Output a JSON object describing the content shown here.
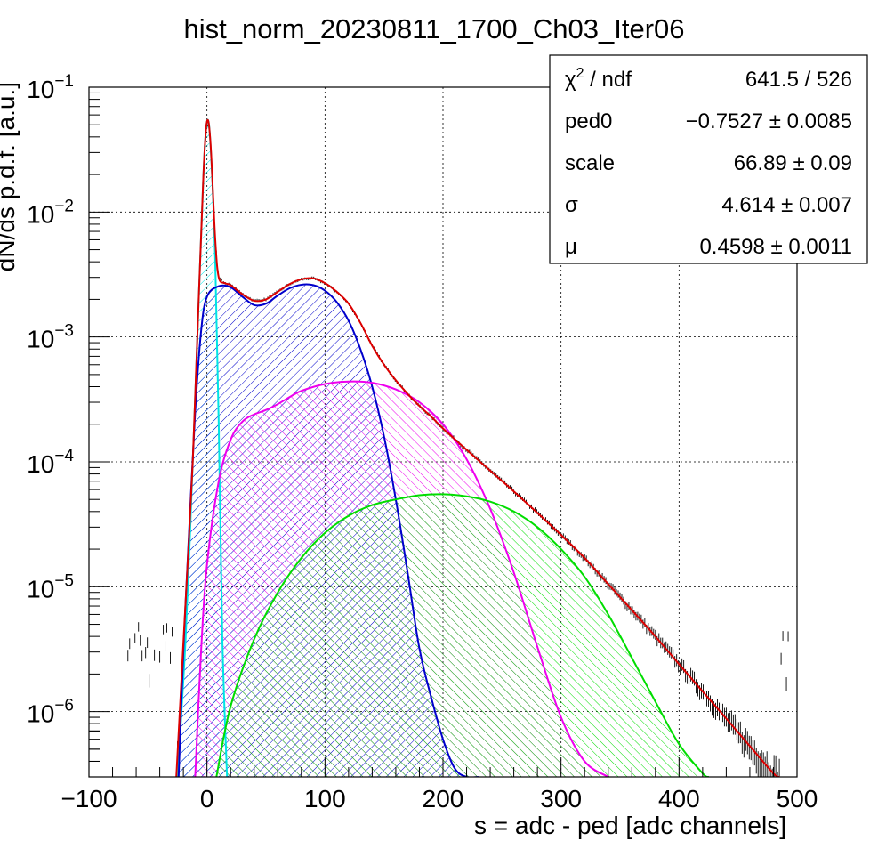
{
  "chart_data": {
    "type": "line",
    "title": "hist_norm_20230811_1700_Ch03_Iter06",
    "xlabel": "s = adc - ped [adc channels]",
    "ylabel": "dN/ds p.d.f. [a.u.]",
    "xlim": [
      -100,
      500
    ],
    "ylim": [
      3e-07,
      0.1
    ],
    "yscale": "log",
    "grid": true,
    "x_ticks": [
      -100,
      0,
      100,
      200,
      300,
      400,
      500
    ],
    "x_tick_labels": [
      "−100",
      "0",
      "100",
      "200",
      "300",
      "400",
      "500"
    ],
    "y_ticks": [
      {
        "value": 0.1,
        "mantissa": "10",
        "exponent": "−1"
      },
      {
        "value": 0.01,
        "mantissa": "10",
        "exponent": "−2"
      },
      {
        "value": 0.001,
        "mantissa": "10",
        "exponent": "−3"
      },
      {
        "value": 0.0001,
        "mantissa": "10",
        "exponent": "−4"
      },
      {
        "value": 1e-05,
        "mantissa": "10",
        "exponent": "−5"
      },
      {
        "value": 1e-06,
        "mantissa": "10",
        "exponent": "−6"
      }
    ],
    "stats": [
      {
        "label_main": "χ",
        "label_sup": "2",
        "label_rest": " / ndf",
        "value": "641.5 / 526"
      },
      {
        "label_main": "ped0",
        "label_sup": "",
        "label_rest": "",
        "value": "−0.7527 ± 0.0085"
      },
      {
        "label_main": "scale",
        "label_sup": "",
        "label_rest": "",
        "value": "66.89 ± 0.09"
      },
      {
        "label_main": "σ",
        "label_sup": "",
        "label_rest": "",
        "value": "4.614 ± 0.007"
      },
      {
        "label_main": "μ",
        "label_sup": "",
        "label_rest": "",
        "value": "0.4598 ± 0.0011"
      }
    ],
    "series": [
      {
        "color": "#00e5e5",
        "hatch": true,
        "points": [
          [
            -25,
            3e-07
          ],
          [
            -18,
            4e-06
          ],
          [
            -12,
            0.0001
          ],
          [
            -7,
            0.002
          ],
          [
            -3,
            0.02
          ],
          [
            0,
            0.053
          ],
          [
            3,
            0.035
          ],
          [
            7,
            0.004
          ],
          [
            10,
            0.0002
          ],
          [
            13,
            4e-06
          ],
          [
            17,
            3e-07
          ]
        ]
      },
      {
        "color": "#0000cc",
        "hatch": true,
        "points": [
          [
            -24,
            3e-07
          ],
          [
            -20,
            3e-06
          ],
          [
            -15,
            3e-05
          ],
          [
            -10,
            0.00025
          ],
          [
            -5,
            0.0011
          ],
          [
            0,
            0.0021
          ],
          [
            10,
            0.00255
          ],
          [
            20,
            0.0025
          ],
          [
            30,
            0.0021
          ],
          [
            40,
            0.0018
          ],
          [
            50,
            0.00185
          ],
          [
            60,
            0.00215
          ],
          [
            70,
            0.00245
          ],
          [
            80,
            0.00262
          ],
          [
            90,
            0.0026
          ],
          [
            100,
            0.00235
          ],
          [
            110,
            0.0019
          ],
          [
            120,
            0.00135
          ],
          [
            130,
            0.0008
          ],
          [
            140,
            0.0004
          ],
          [
            150,
            0.00016
          ],
          [
            160,
            5e-05
          ],
          [
            170,
            1.3e-05
          ],
          [
            180,
            3.2e-06
          ],
          [
            190,
            1.3e-06
          ],
          [
            200,
            6e-07
          ],
          [
            210,
            3.5e-07
          ],
          [
            220,
            3e-07
          ],
          [
            230,
            3e-07
          ]
        ]
      },
      {
        "color": "#ee00ee",
        "hatch": true,
        "points": [
          [
            -10,
            3e-07
          ],
          [
            -5,
            3e-06
          ],
          [
            0,
            1.5e-05
          ],
          [
            10,
            7e-05
          ],
          [
            20,
            0.00015
          ],
          [
            30,
            0.00021
          ],
          [
            40,
            0.00024
          ],
          [
            50,
            0.00026
          ],
          [
            60,
            0.00029
          ],
          [
            70,
            0.00033
          ],
          [
            80,
            0.00037
          ],
          [
            100,
            0.00042
          ],
          [
            120,
            0.00044
          ],
          [
            140,
            0.00043
          ],
          [
            160,
            0.00038
          ],
          [
            180,
            0.0003
          ],
          [
            200,
            0.0002
          ],
          [
            220,
            0.000105
          ],
          [
            240,
            4.2e-05
          ],
          [
            260,
            1.3e-05
          ],
          [
            280,
            3.3e-06
          ],
          [
            300,
            9e-07
          ],
          [
            320,
            4e-07
          ],
          [
            340,
            3e-07
          ]
        ]
      },
      {
        "color": "#00dd00",
        "hatch": true,
        "points": [
          [
            8,
            3e-07
          ],
          [
            20,
            1.1e-06
          ],
          [
            40,
            3.8e-06
          ],
          [
            60,
            9e-06
          ],
          [
            80,
            1.7e-05
          ],
          [
            100,
            2.7e-05
          ],
          [
            120,
            3.7e-05
          ],
          [
            140,
            4.5e-05
          ],
          [
            160,
            5e-05
          ],
          [
            180,
            5.4e-05
          ],
          [
            200,
            5.5e-05
          ],
          [
            220,
            5.3e-05
          ],
          [
            240,
            4.8e-05
          ],
          [
            260,
            4e-05
          ],
          [
            280,
            3e-05
          ],
          [
            300,
            2e-05
          ],
          [
            320,
            1.2e-05
          ],
          [
            340,
            6e-06
          ],
          [
            360,
            2.7e-06
          ],
          [
            380,
            1.2e-06
          ],
          [
            400,
            5.5e-07
          ],
          [
            420,
            3.2e-07
          ],
          [
            425,
            3e-07
          ]
        ]
      },
      {
        "color": "#dd0000",
        "hatch": false,
        "points": [
          [
            -26,
            3e-07
          ],
          [
            -20,
            3.5e-06
          ],
          [
            -12,
            0.0001
          ],
          [
            -7,
            0.002
          ],
          [
            -3,
            0.02
          ],
          [
            0,
            0.053
          ],
          [
            3,
            0.036
          ],
          [
            7,
            0.006
          ],
          [
            10,
            0.003
          ],
          [
            15,
            0.0027
          ],
          [
            20,
            0.0026
          ],
          [
            30,
            0.0022
          ],
          [
            40,
            0.00195
          ],
          [
            50,
            0.002
          ],
          [
            60,
            0.0023
          ],
          [
            70,
            0.00265
          ],
          [
            80,
            0.0029
          ],
          [
            90,
            0.00295
          ],
          [
            100,
            0.0027
          ],
          [
            110,
            0.0023
          ],
          [
            120,
            0.00185
          ],
          [
            130,
            0.0013
          ],
          [
            140,
            0.00085
          ],
          [
            150,
            0.0006
          ],
          [
            160,
            0.00045
          ],
          [
            170,
            0.00035
          ],
          [
            180,
            0.00028
          ],
          [
            190,
            0.00023
          ],
          [
            200,
            0.000185
          ],
          [
            220,
            0.000125
          ],
          [
            240,
            8.5e-05
          ],
          [
            260,
            5.8e-05
          ],
          [
            280,
            3.9e-05
          ],
          [
            300,
            2.6e-05
          ],
          [
            320,
            1.7e-05
          ],
          [
            340,
            1.05e-05
          ],
          [
            360,
            6.5e-06
          ],
          [
            380,
            4e-06
          ],
          [
            400,
            2.4e-06
          ],
          [
            420,
            1.45e-06
          ],
          [
            440,
            8.8e-07
          ],
          [
            460,
            5.3e-07
          ],
          [
            480,
            3.2e-07
          ],
          [
            485,
            3e-07
          ]
        ]
      }
    ]
  }
}
